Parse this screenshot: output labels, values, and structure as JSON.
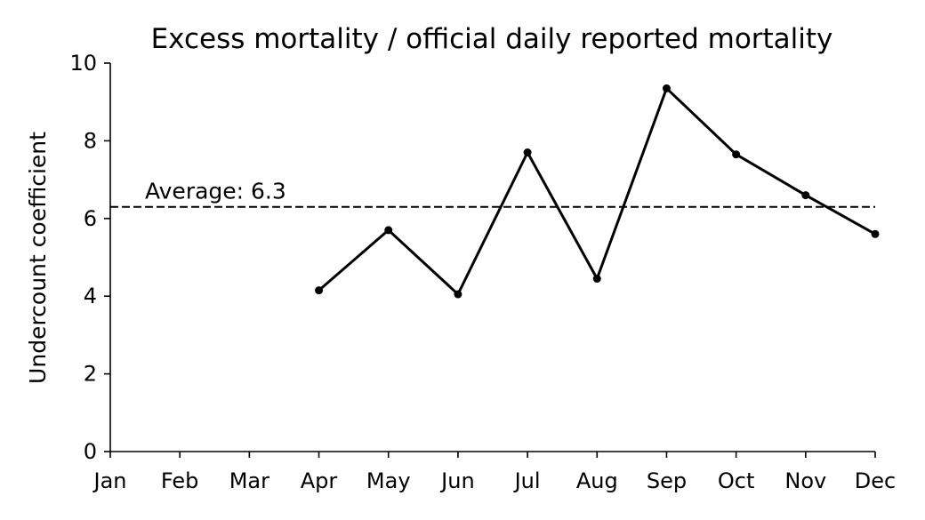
{
  "chart_data": {
    "type": "line",
    "title": "Excess mortality / official daily reported mortality",
    "xlabel": "",
    "ylabel": "Undercount coefficient",
    "ylim": [
      0,
      10
    ],
    "yticks": [
      0,
      2,
      4,
      6,
      8,
      10
    ],
    "x_ticks": [
      "Jan",
      "Feb",
      "Mar",
      "Apr",
      "May",
      "Jun",
      "Jul",
      "Aug",
      "Sep",
      "Oct",
      "Nov",
      "Dec"
    ],
    "series": [
      {
        "x": [
          "Apr",
          "May",
          "Jun",
          "Jul",
          "Aug",
          "Sep",
          "Oct",
          "Nov",
          "Dec"
        ],
        "values": [
          4.15,
          5.7,
          4.05,
          7.7,
          4.45,
          9.35,
          7.65,
          6.6,
          5.6
        ],
        "color": "#000000"
      }
    ],
    "average": {
      "value": 6.3,
      "label": "Average: 6.3",
      "style": "dashed"
    },
    "grid": false,
    "legend": "none"
  }
}
